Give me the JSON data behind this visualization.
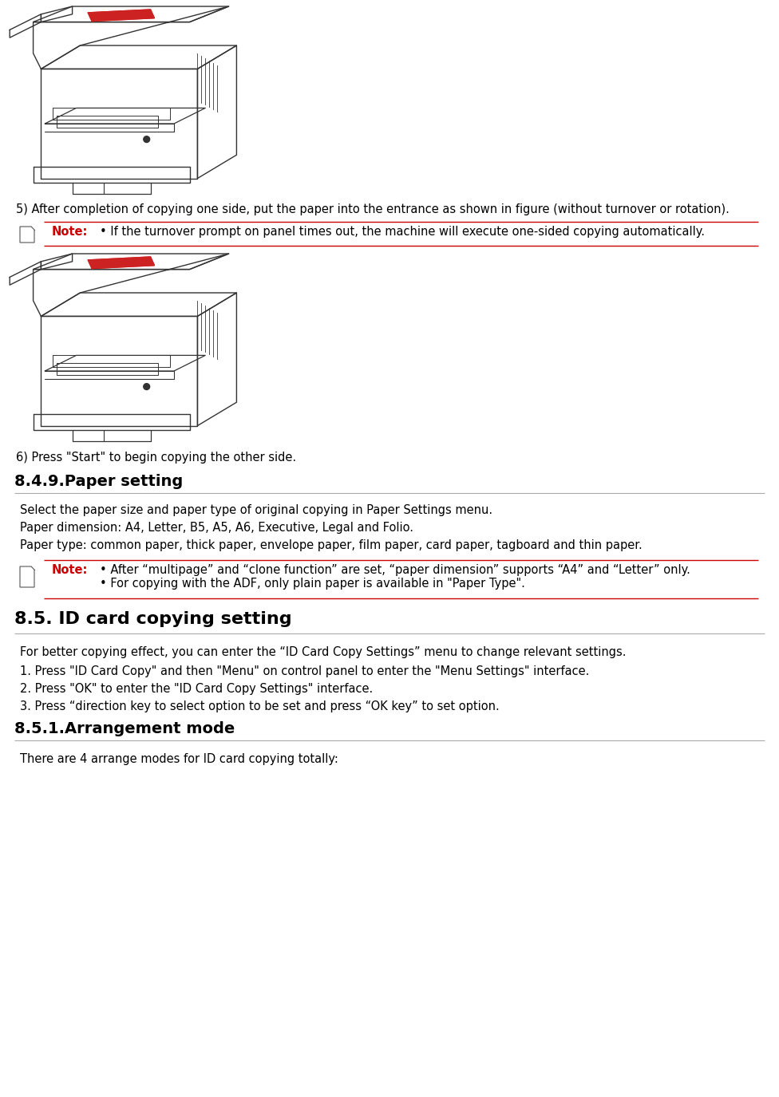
{
  "bg_color": "#ffffff",
  "text_color": "#000000",
  "red_color": "#cc0000",
  "gray_line_color": "#aaaaaa",
  "red_line_color": "#cc0000",
  "step5_text": "5) After completion of copying one side, put the paper into the entrance as shown in figure (without turnover or rotation).",
  "note1_label": "Note:",
  "note1_text": "• If the turnover prompt on panel times out, the machine will execute one-sided copying automatically.",
  "step6_text": "6) Press \"Start\" to begin copying the other side.",
  "section_849_title": "8.4.9.Paper setting",
  "section_849_body1": "Select the paper size and paper type of original copying in Paper Settings menu.",
  "section_849_body2": "Paper dimension: A4, Letter, B5, A5, A6, Executive, Legal and Folio.",
  "section_849_body3": "Paper type: common paper, thick paper, envelope paper, film paper, card paper, tagboard and thin paper.",
  "note2_label": "Note:",
  "note2_line1": "• After “multipage” and “clone function” are set, “paper dimension” supports “A4” and “Letter” only.",
  "note2_line2": "• For copying with the ADF, only plain paper is available in \"Paper Type\".",
  "section_85_title": "8.5. ID card copying setting",
  "section_85_body1": "For better copying effect, you can enter the “ID Card Copy Settings” menu to change relevant settings.",
  "section_85_body2": "1. Press \"ID Card Copy\" and then \"Menu\" on control panel to enter the \"Menu Settings\" interface.",
  "section_85_body3": "2. Press \"OK\" to enter the \"ID Card Copy Settings\" interface.",
  "section_85_body4": "3. Press “direction key to select option to be set and press “OK key” to set option.",
  "section_851_title": "8.5.1.Arrangement mode",
  "section_851_body1": "There are 4 arrange modes for ID card copying totally:"
}
